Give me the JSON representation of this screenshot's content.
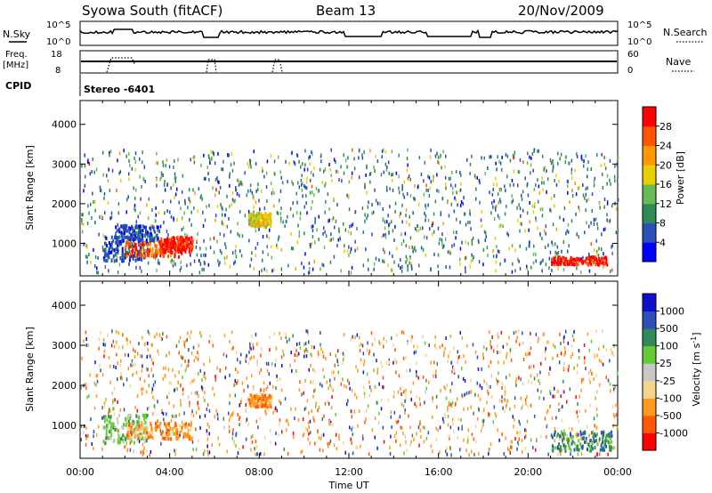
{
  "header": {
    "station": "Syowa South (fitACF)",
    "beam": "Beam 13",
    "date": "20/Nov/2009"
  },
  "noise_panel": {
    "left_label": "N.Sky",
    "right_label": "N.Search",
    "left_ticks": [
      "10^5",
      "10^0"
    ],
    "right_ticks": [
      "10^5",
      "10^0"
    ]
  },
  "freq_panel": {
    "left_label": "Freq.",
    "left_unit": "[MHz]",
    "left_ticks": [
      "18",
      "8"
    ],
    "right_label": "Nave",
    "right_ticks": [
      "60",
      "0"
    ]
  },
  "cpid": {
    "label": "CPID",
    "value": "Stereo -6401"
  },
  "colors": {
    "power": [
      "#0000ff",
      "#2a4fb8",
      "#2e8b57",
      "#66bb55",
      "#e8d000",
      "#ff9900",
      "#ff5500",
      "#ff0000"
    ],
    "velocity": [
      "#ff0000",
      "#ff5a00",
      "#ff9a1e",
      "#f6d58a",
      "#c8c8c8",
      "#66cc33",
      "#2e8b57",
      "#2d4fb8",
      "#1010cc"
    ]
  },
  "chart_data": [
    {
      "type": "heatmap",
      "name": "power",
      "xlabel": "",
      "ylabel": "Slant Range [km]",
      "x_ticks": [
        "00:00",
        "04:00",
        "08:00",
        "12:00",
        "16:00",
        "20:00",
        "00:00"
      ],
      "xlim": [
        0,
        24
      ],
      "y_ticks": [
        1000,
        2000,
        3000,
        4000
      ],
      "ylim": [
        180,
        4600
      ],
      "colorbar_label": "Power [dB]",
      "colorbar_ticks": [
        4,
        8,
        12,
        16,
        20,
        24,
        28
      ],
      "colorbar_range": [
        0,
        32
      ],
      "features": [
        {
          "t": [
            1.0,
            3.0
          ],
          "r": [
            600,
            1200
          ],
          "level": 1
        },
        {
          "t": [
            2.0,
            4.5
          ],
          "r": [
            700,
            1100
          ],
          "level": 6
        },
        {
          "t": [
            3.5,
            5.0
          ],
          "r": [
            800,
            1200
          ],
          "level": 7
        },
        {
          "t": [
            1.5,
            3.5
          ],
          "r": [
            1100,
            1500
          ],
          "level": 1
        },
        {
          "t": [
            7.5,
            8.5
          ],
          "r": [
            1450,
            1800
          ],
          "level": 4
        },
        {
          "t": [
            21.0,
            23.5
          ],
          "r": [
            500,
            700
          ],
          "level": 7
        }
      ]
    },
    {
      "type": "heatmap",
      "name": "velocity",
      "xlabel": "Time UT",
      "ylabel": "Slant Range [km]",
      "x_ticks": [
        "00:00",
        "04:00",
        "08:00",
        "12:00",
        "16:00",
        "20:00",
        "00:00"
      ],
      "xlim": [
        0,
        24
      ],
      "y_ticks": [
        1000,
        2000,
        3000,
        4000
      ],
      "ylim": [
        180,
        4600
      ],
      "colorbar_label": "Velocity [m s^-1]",
      "colorbar_ticks": [
        "1000",
        "500",
        "100",
        "25",
        "-25",
        "-100",
        "-500",
        "-1000"
      ],
      "features": [
        {
          "t": [
            1.0,
            3.0
          ],
          "r": [
            600,
            1300
          ],
          "level": 5
        },
        {
          "t": [
            2.0,
            5.0
          ],
          "r": [
            700,
            1100
          ],
          "level": 2
        },
        {
          "t": [
            7.5,
            8.5
          ],
          "r": [
            1500,
            1800
          ],
          "level": 2
        },
        {
          "t": [
            21.0,
            23.8
          ],
          "r": [
            400,
            900
          ],
          "level": 6
        }
      ]
    }
  ]
}
